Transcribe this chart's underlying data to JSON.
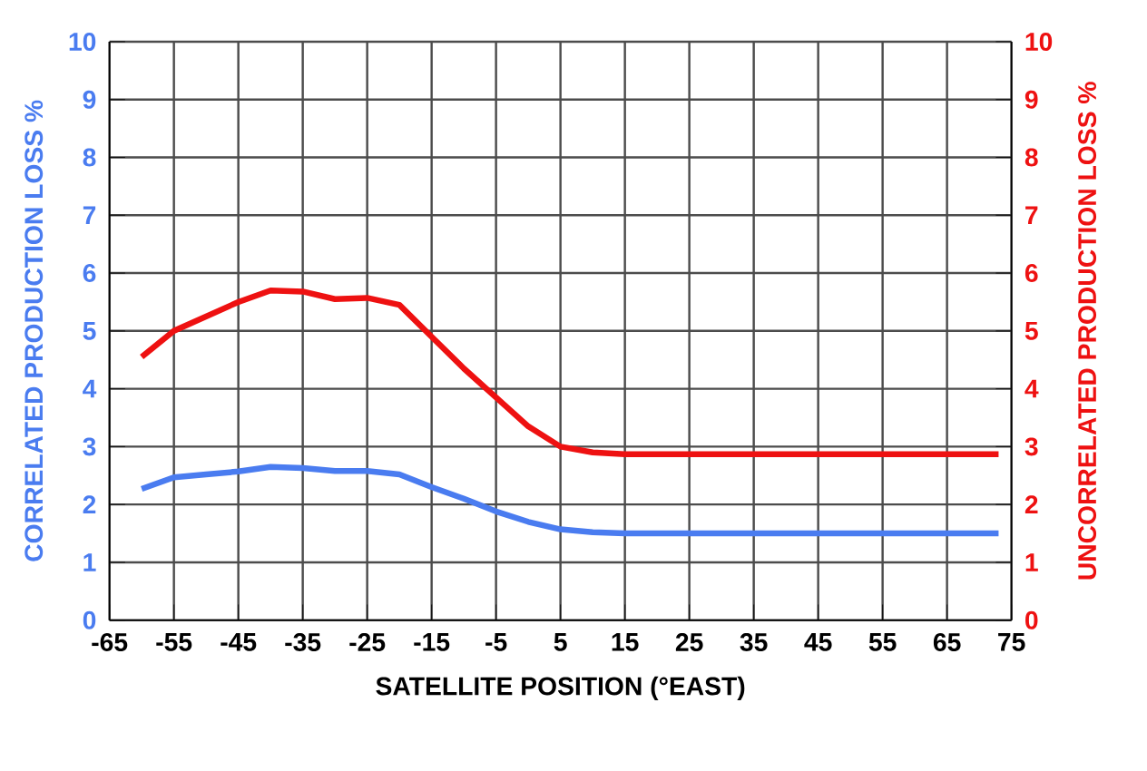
{
  "chart_data": {
    "type": "line",
    "xlabel": "SATELLITE POSITION (°EAST)",
    "ylabel": "CORRELATED PRODUCTION LOSS %",
    "y2label": "UNCORRELATED PRODUCTION LOSS %",
    "xlim": [
      -65,
      75
    ],
    "xticks": [
      -65,
      -55,
      -45,
      -35,
      -25,
      -15,
      -5,
      5,
      15,
      25,
      35,
      45,
      55,
      65,
      75
    ],
    "ylim": [
      0,
      10
    ],
    "yticks": [
      0,
      1,
      2,
      3,
      4,
      5,
      6,
      7,
      8,
      9,
      10
    ],
    "y2lim": [
      0,
      10
    ],
    "y2ticks": [
      0,
      1,
      2,
      3,
      4,
      5,
      6,
      7,
      8,
      9,
      10
    ],
    "grid": true,
    "marker": "none",
    "line_style": "solid",
    "series": [
      {
        "color": "#4a7cf0",
        "x": [
          -60,
          -55,
          -50,
          -45,
          -40,
          -35,
          -30,
          -25,
          -20,
          -15,
          -10,
          -5,
          0,
          5,
          10,
          15,
          25,
          35,
          45,
          55,
          65,
          73
        ],
        "values": [
          2.27,
          2.47,
          2.52,
          2.57,
          2.65,
          2.63,
          2.58,
          2.58,
          2.52,
          2.3,
          2.1,
          1.88,
          1.7,
          1.57,
          1.52,
          1.5,
          1.5,
          1.5,
          1.5,
          1.5,
          1.5,
          1.5
        ]
      },
      {
        "color": "#ee1111",
        "axis": "y2",
        "x": [
          -60,
          -55,
          -50,
          -45,
          -40,
          -35,
          -30,
          -25,
          -20,
          -15,
          -10,
          -5,
          0,
          5,
          10,
          15,
          25,
          35,
          45,
          55,
          65,
          73
        ],
        "values": [
          4.55,
          5.0,
          5.25,
          5.5,
          5.7,
          5.68,
          5.55,
          5.57,
          5.45,
          4.9,
          4.35,
          3.85,
          3.35,
          3.0,
          2.9,
          2.87,
          2.87,
          2.87,
          2.87,
          2.87,
          2.87,
          2.87
        ]
      }
    ]
  }
}
